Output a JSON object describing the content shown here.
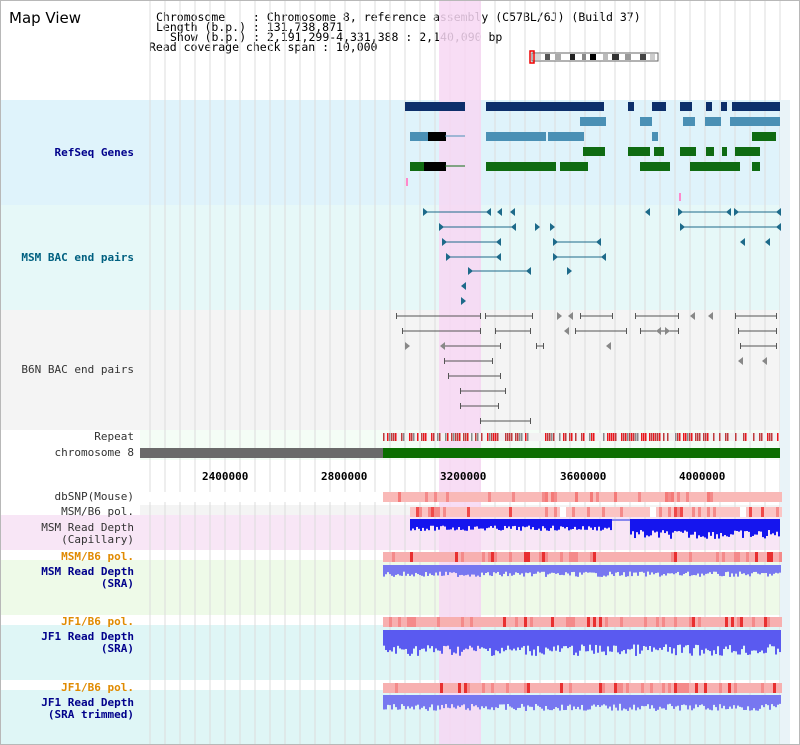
{
  "header": {
    "view_title": "Map View",
    "line1": "Chromosome    : Chromosome 8, reference assembly (C57BL/6J) (Build 37)",
    "line2": "Length (b.p.) : 131,738,871",
    "line3": "Show (b.p.) : 2,191,299-4,331,388 : 2,140,090 bp",
    "line4": "Read coverage check span : 10,000"
  },
  "tracks": {
    "refseq": "RefSeq Genes",
    "msm_bac": "MSM BAC end pairs",
    "b6n_bac": "B6N BAC end pairs",
    "repeat": "Repeat",
    "chromosome": "chromosome 8",
    "dbsnp": "dbSNP(Mouse)",
    "msm_b6_pol_1": "MSM/B6 pol.",
    "msm_depth_cap_1": "MSM Read Depth",
    "msm_depth_cap_2": "(Capillary)",
    "msm_b6_pol_2": "MSM/B6 pol.",
    "msm_depth_sra_1": "MSM Read Depth",
    "msm_depth_sra_2": "(SRA)",
    "jf1_b6_pol_1": "JF1/B6 pol.",
    "jf1_depth_sra_1": "JF1 Read Depth",
    "jf1_depth_sra_2": "(SRA)",
    "jf1_b6_pol_2": "JF1/B6 pol.",
    "jf1_depth_trim_1": "JF1 Read Depth",
    "jf1_depth_trim_2": "(SRA trimmed)"
  },
  "axis_ticks": [
    "2400000",
    "2800000",
    "3200000",
    "3600000",
    "4000000"
  ],
  "colors": {
    "refseq_bg": "#dff3fb",
    "highlight": "#f7d7f3",
    "gene_dark": "#0d2f6b",
    "gene_mid": "#4a90b5",
    "gene_green": "#0f6b12",
    "chrom_gray": "#6a6a6a",
    "chrom_green": "#0a6e00",
    "depth_blue": "#1a1aee",
    "depth_lightblue": "#7777f0",
    "label_blue": "#00008b",
    "label_teal": "#006080",
    "label_orange": "#e08a00"
  }
}
